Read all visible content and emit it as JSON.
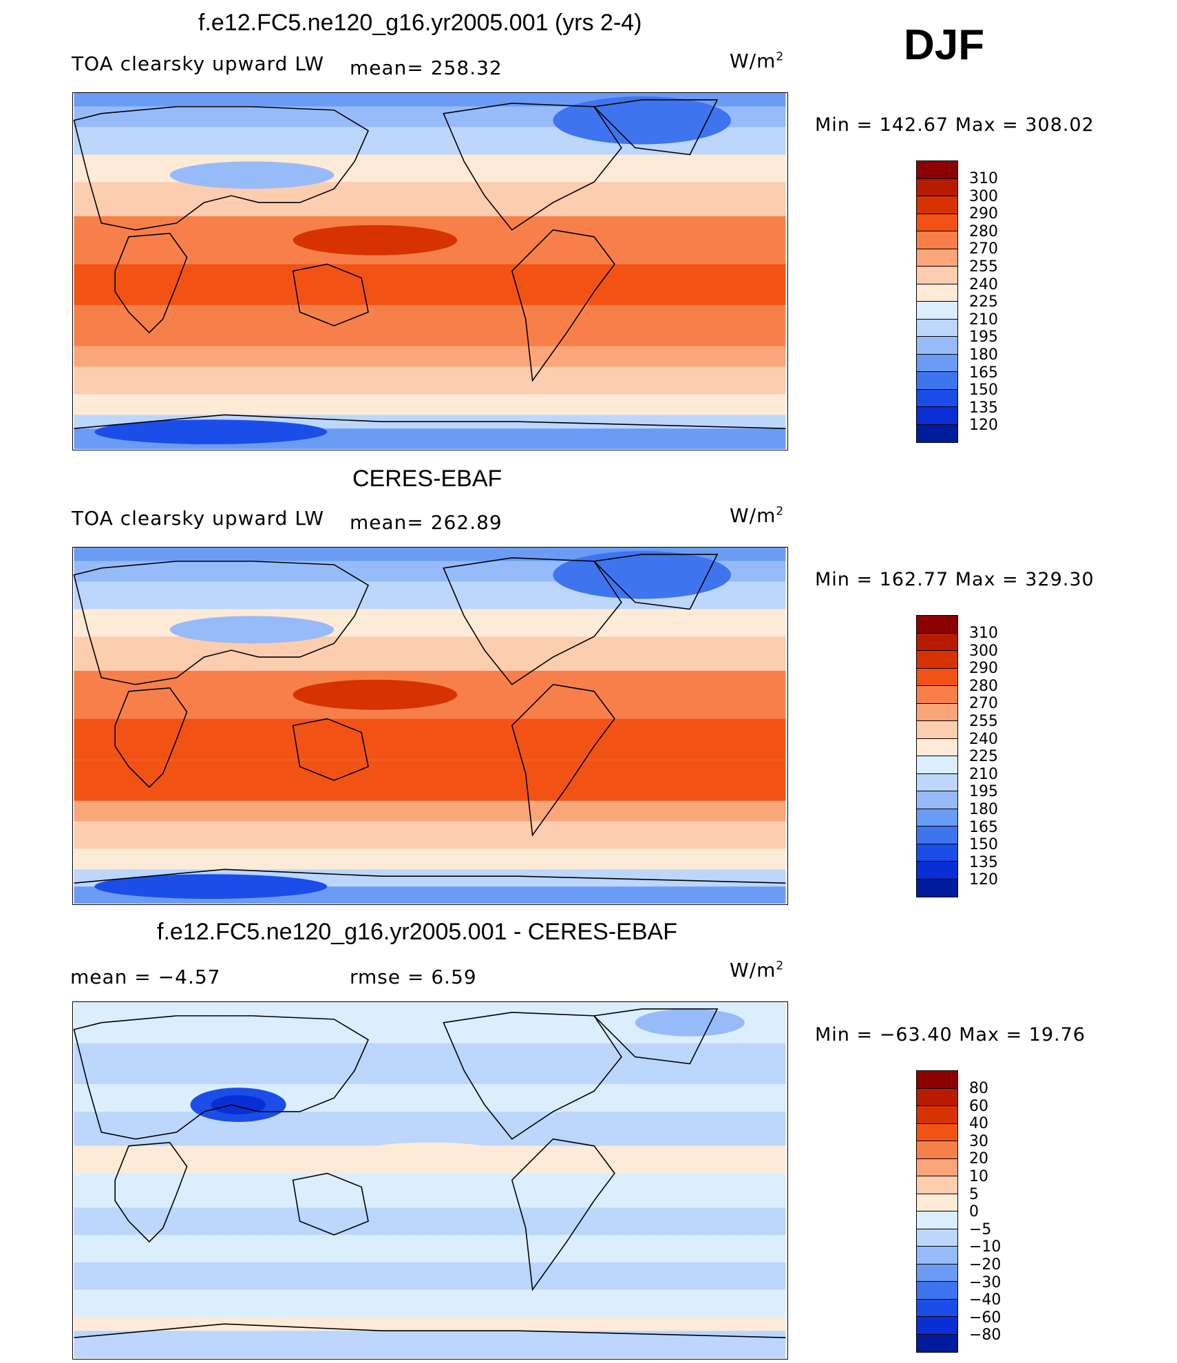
{
  "season": "DJF",
  "units_text": "W/m",
  "units_exp": "2",
  "panels": [
    {
      "title": "f.e12.FC5.ne120_g16.yr2005.001 (yrs 2-4)",
      "left_label": "TOA clearsky upward LW",
      "mean_label": "mean= 258.32",
      "minmax": "Min  =  142.67  Max  =  308.02",
      "map_type": "model",
      "colorbar": {
        "labels": [
          "310",
          "300",
          "290",
          "280",
          "270",
          "255",
          "240",
          "225",
          "210",
          "195",
          "180",
          "165",
          "150",
          "135",
          "120"
        ],
        "colors": [
          "#8b0000",
          "#b71c00",
          "#d63300",
          "#f25315",
          "#f7804a",
          "#faa57a",
          "#fdcdb0",
          "#fdebd8",
          "#daeefe",
          "#bcd6fc",
          "#97bbf9",
          "#6b9cf5",
          "#3f74ef",
          "#1b4ee8",
          "#0a2ed6",
          "#001c9c"
        ]
      }
    },
    {
      "title": "CERES-EBAF",
      "left_label": "TOA clearsky upward LW",
      "mean_label": "mean= 262.89",
      "minmax": "Min  =  162.77  Max  =  329.30",
      "map_type": "obs",
      "colorbar": {
        "labels": [
          "310",
          "300",
          "290",
          "280",
          "270",
          "255",
          "240",
          "225",
          "210",
          "195",
          "180",
          "165",
          "150",
          "135",
          "120"
        ],
        "colors": [
          "#8b0000",
          "#b71c00",
          "#d63300",
          "#f25315",
          "#f7804a",
          "#faa57a",
          "#fdcdb0",
          "#fdebd8",
          "#daeefe",
          "#bcd6fc",
          "#97bbf9",
          "#6b9cf5",
          "#3f74ef",
          "#1b4ee8",
          "#0a2ed6",
          "#001c9c"
        ]
      }
    },
    {
      "title": "f.e12.FC5.ne120_g16.yr2005.001 - CERES-EBAF",
      "left_label": "mean =    −4.57",
      "mean_label": "rmse =     6.59",
      "minmax": "Min  =  −63.40  Max  =    19.76",
      "map_type": "diff",
      "colorbar": {
        "labels": [
          "80",
          "60",
          "40",
          "30",
          "20",
          "10",
          "5",
          "0",
          "−5",
          "−10",
          "−20",
          "−30",
          "−40",
          "−60",
          "−80"
        ],
        "colors": [
          "#8b0000",
          "#b71c00",
          "#d63300",
          "#f25315",
          "#f7804a",
          "#faa57a",
          "#fdcdb0",
          "#fdebd8",
          "#daeefe",
          "#bcd6fc",
          "#97bbf9",
          "#6b9cf5",
          "#3f74ef",
          "#1b4ee8",
          "#0a2ed6",
          "#001c9c"
        ]
      }
    }
  ]
}
